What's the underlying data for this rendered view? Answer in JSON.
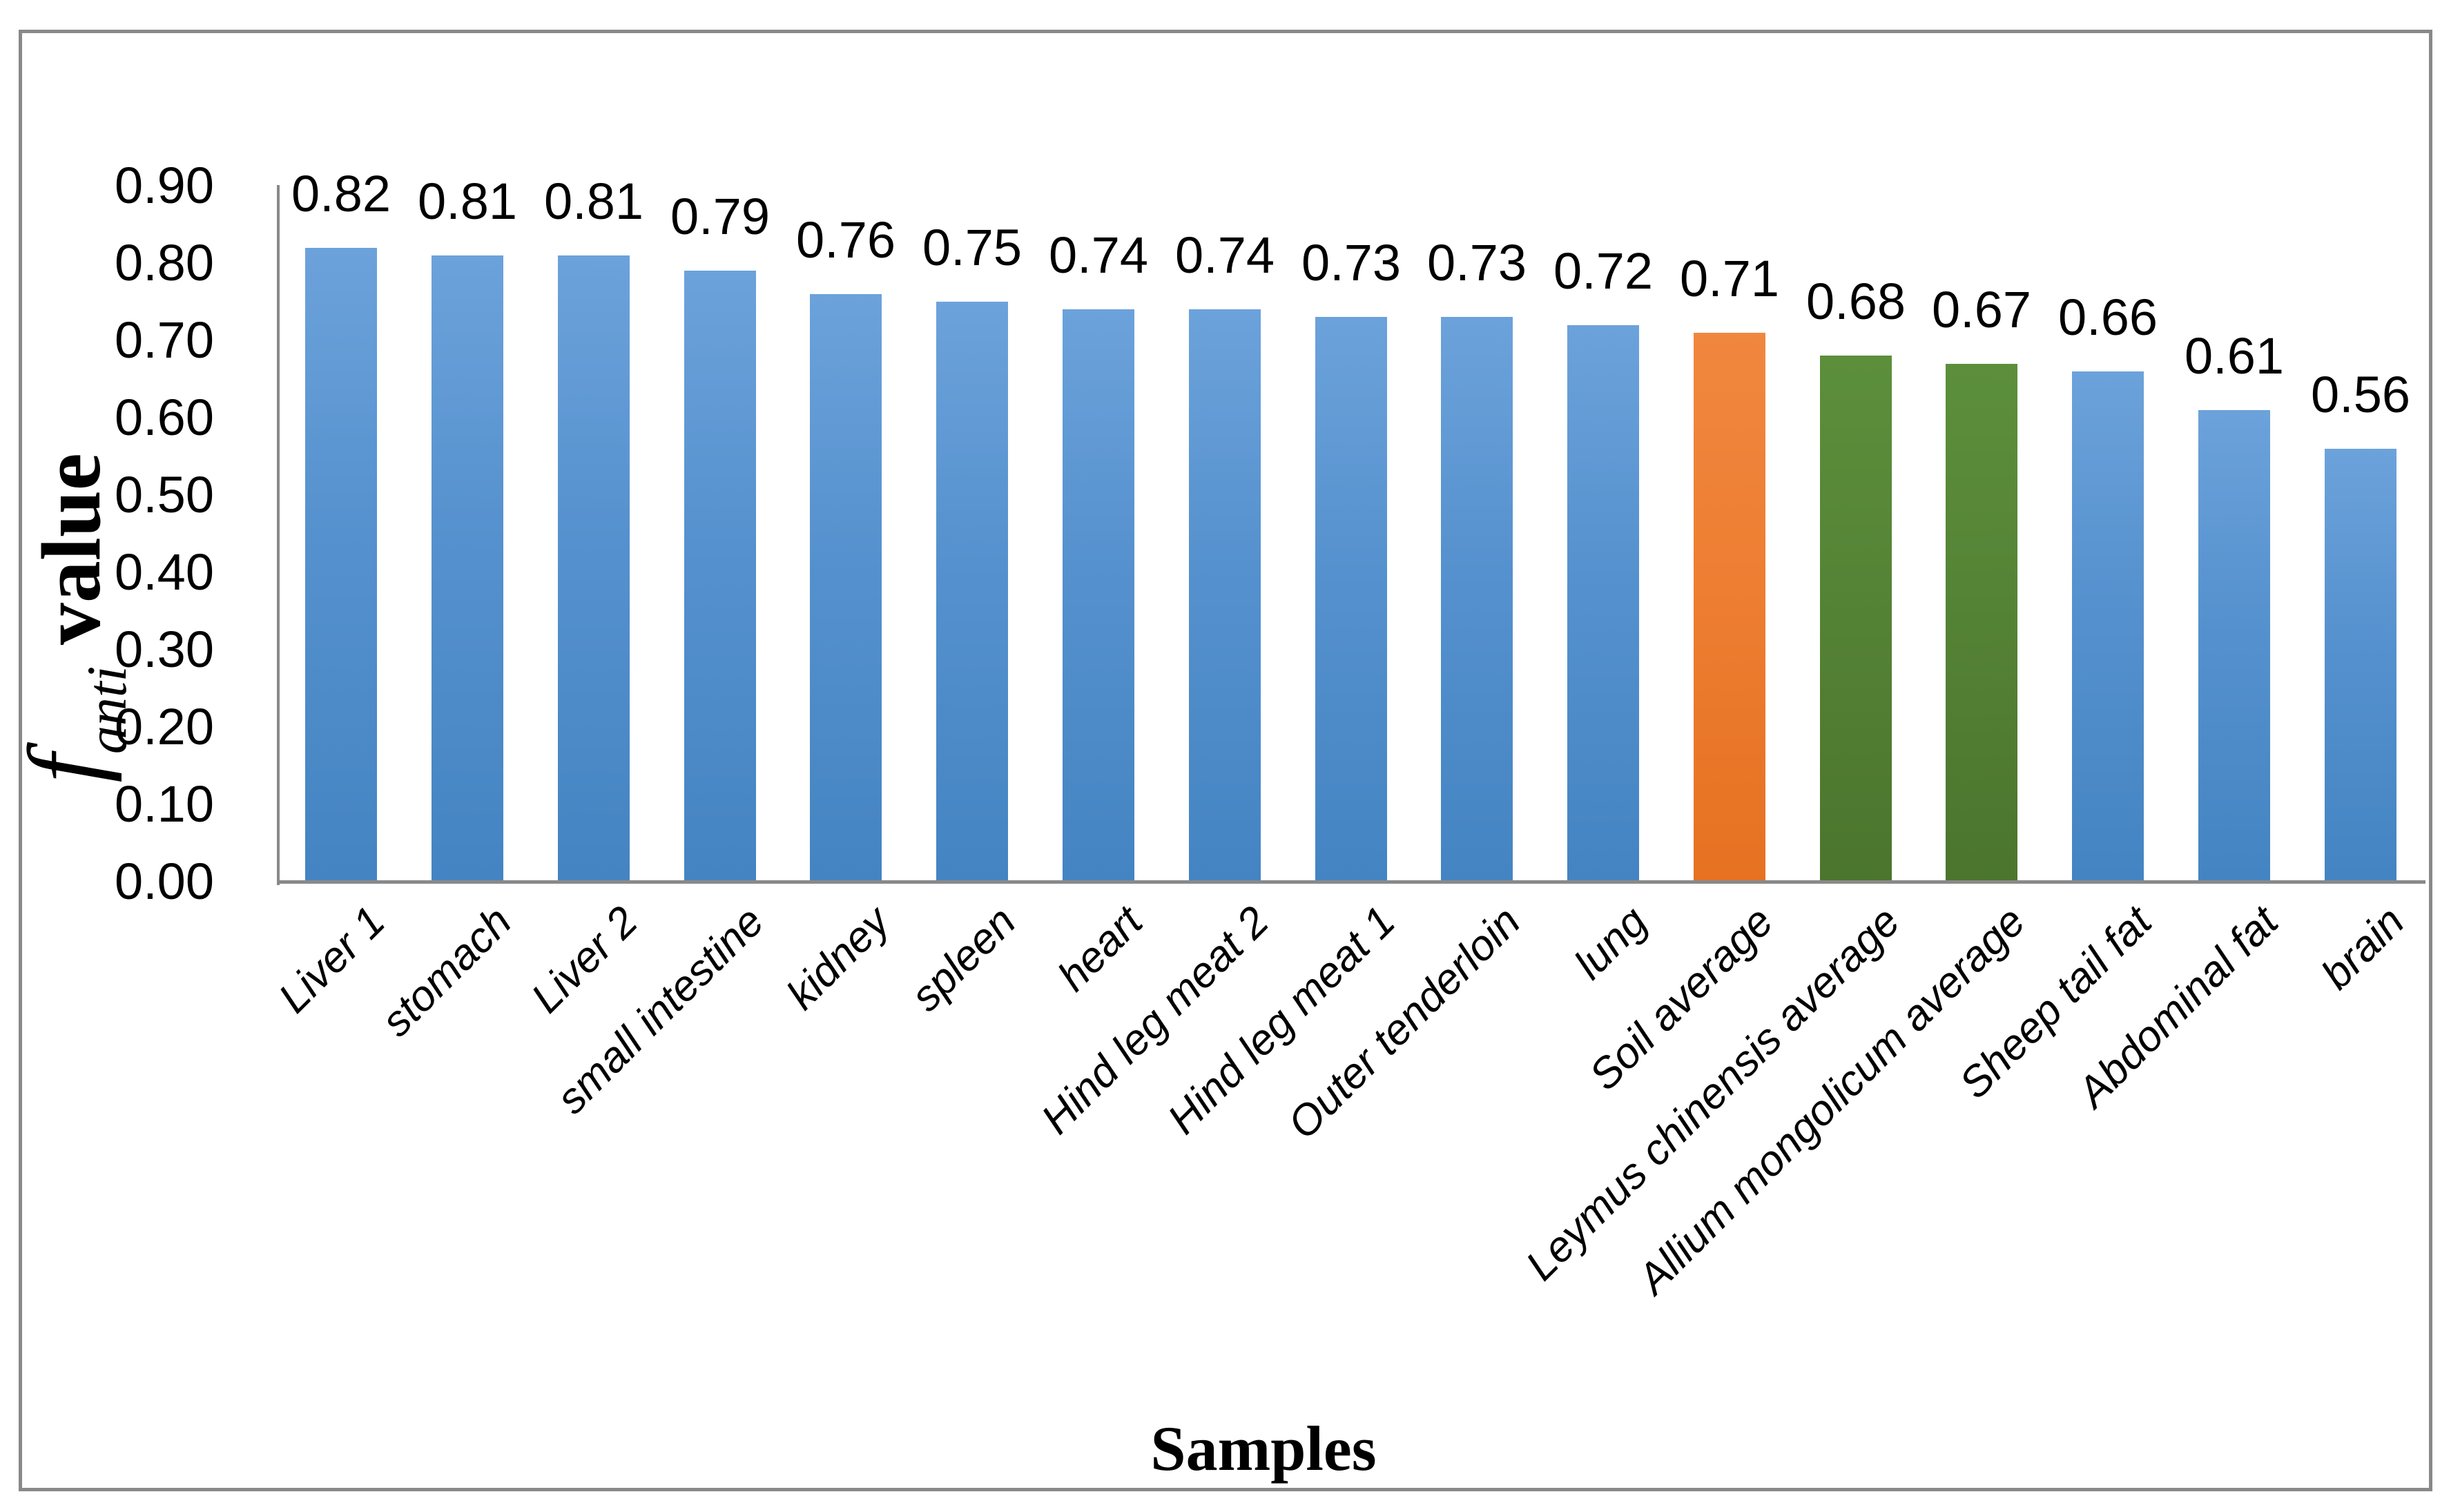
{
  "figure": {
    "background": "#ffffff",
    "border_color": "#898989"
  },
  "chart_data": {
    "type": "bar",
    "title": "",
    "xlabel": "Samples",
    "ylabel": "f_anti value",
    "ylabel_parts": {
      "symbol": "f",
      "subscript": "anti",
      "text": "value"
    },
    "ylim": [
      0.0,
      0.9
    ],
    "ytick_labels": [
      "0.90",
      "0.80",
      "0.70",
      "0.60",
      "0.50",
      "0.40",
      "0.30",
      "0.20",
      "0.10",
      "0.00"
    ],
    "ytick_values": [
      0.9,
      0.8,
      0.7,
      0.6,
      0.5,
      0.4,
      0.3,
      0.2,
      0.1,
      0.0
    ],
    "grid": false,
    "legend": null,
    "categories": [
      "Liver 1",
      "stomach",
      "Liver 2",
      "small intestine",
      "kidney",
      "spleen",
      "heart",
      "Hind leg meat 2",
      "Hind leg meat 1",
      "Outer tenderloin",
      "lung",
      "Soil average",
      "Leymus chinensis average",
      "Allium mongolicum average",
      "Sheep tail fat",
      "Abdominal fat",
      "brain"
    ],
    "values": [
      0.82,
      0.81,
      0.81,
      0.79,
      0.76,
      0.75,
      0.74,
      0.74,
      0.73,
      0.73,
      0.72,
      0.71,
      0.68,
      0.67,
      0.66,
      0.61,
      0.56
    ],
    "value_labels": [
      "0.82",
      "0.81",
      "0.81",
      "0.79",
      "0.76",
      "0.75",
      "0.74",
      "0.74",
      "0.73",
      "0.73",
      "0.72",
      "0.71",
      "0.68",
      "0.67",
      "0.66",
      "0.61",
      "0.56"
    ],
    "bar_color_keys": [
      "blue",
      "blue",
      "blue",
      "blue",
      "blue",
      "blue",
      "blue",
      "blue",
      "blue",
      "blue",
      "blue",
      "orange",
      "green",
      "green",
      "blue",
      "blue",
      "blue"
    ],
    "palette": {
      "blue": "#5B9BD5",
      "blue_gradient_top": "#6CA2DB",
      "blue_gradient_bottom": "#4484C2",
      "orange": "#ED7D31",
      "green": "#548235",
      "axis": "#898989",
      "text": "#000000"
    }
  }
}
